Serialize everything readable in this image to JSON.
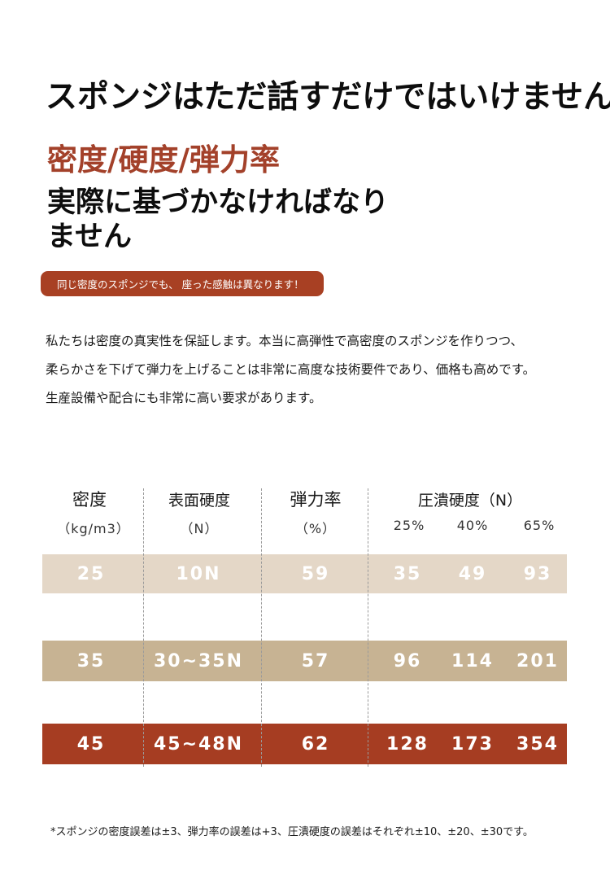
{
  "headline": "スポンジはただ話すだけではいけません",
  "accent_title": "密度/硬度/弾力率",
  "subhead_line1": "実際に基づかなければなり",
  "subhead_line2": "ません",
  "pill_text": "同じ密度のスポンジでも、 座った感触は異なります！",
  "body_lines": [
    "私たちは密度の真実性を保証します。本当に高弾性で高密度のスポンジを作りつつ、",
    "柔らかさを下げて弾力を上げることは非常に高度な技術要件であり、価格も高めです。",
    "生産設備や配合にも非常に高い要求があります。"
  ],
  "table": {
    "headers": {
      "density": "密度",
      "density_unit": "（kg/m3）",
      "surface_hardness": "表面硬度",
      "surface_hardness_unit": "（N）",
      "resilience": "弾力率",
      "resilience_unit": "（%）",
      "compression": "圧潰硬度（N）",
      "pct25": "25%",
      "pct40": "40%",
      "pct65": "65%"
    },
    "rows": [
      {
        "density": "25",
        "surface": "10N",
        "resilience": "59",
        "c25": "35",
        "c40": "49",
        "c65": "93",
        "color": "#e4d7c7"
      },
      {
        "density": "35",
        "surface": "30~35N",
        "resilience": "57",
        "c25": "96",
        "c40": "114",
        "c65": "201",
        "color": "#c7b393"
      },
      {
        "density": "45",
        "surface": "45~48N",
        "resilience": "62",
        "c25": "128",
        "c40": "173",
        "c65": "354",
        "color": "#a63d22"
      }
    ]
  },
  "footnote": "*スポンジの密度誤差は±3、弾力率の誤差は+3、圧潰硬度の誤差はそれぞれ±10、±20、±30です。",
  "colors": {
    "accent": "#a3412a",
    "pill": "#a84023",
    "row_light": "#e4d7c7",
    "row_mid": "#c7b393",
    "row_dark": "#a63d22"
  }
}
